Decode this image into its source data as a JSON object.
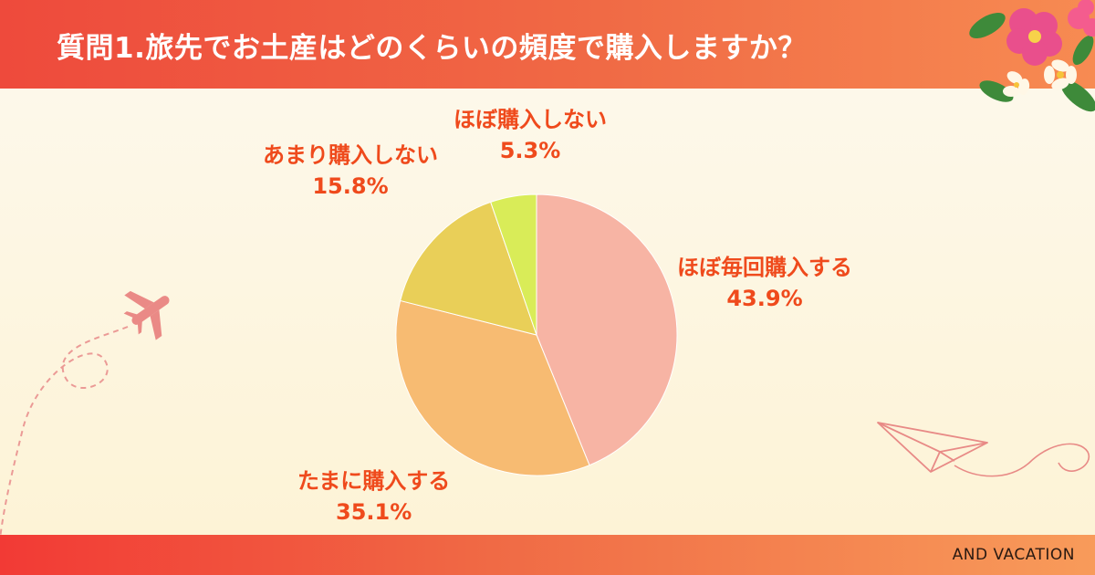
{
  "header": {
    "title": "質問1.旅先でお土産はどのくらいの頻度で購入しますか？"
  },
  "footer": {
    "brand": "AND VACATION"
  },
  "colors": {
    "header_start": "#ee4a3c",
    "header_end": "#f78b52",
    "label": "#ef4a1c"
  },
  "decorations": [
    "hibiscus-flower-icon",
    "airplane-icon",
    "paper-plane-icon"
  ],
  "chart_data": {
    "type": "pie",
    "title": "",
    "start": "top, clockwise",
    "slices": [
      {
        "label": "ほぼ毎回購入する",
        "value": 43.9,
        "display": "43.9%",
        "color": "#f7b4a4"
      },
      {
        "label": "たまに購入する",
        "value": 35.1,
        "display": "35.1%",
        "color": "#f7bb72"
      },
      {
        "label": "あまり購入しない",
        "value": 15.8,
        "display": "15.8%",
        "color": "#e9cf58"
      },
      {
        "label": "ほぼ購入しない",
        "value": 5.3,
        "display": "5.3%",
        "color": "#d9ec58"
      }
    ]
  }
}
